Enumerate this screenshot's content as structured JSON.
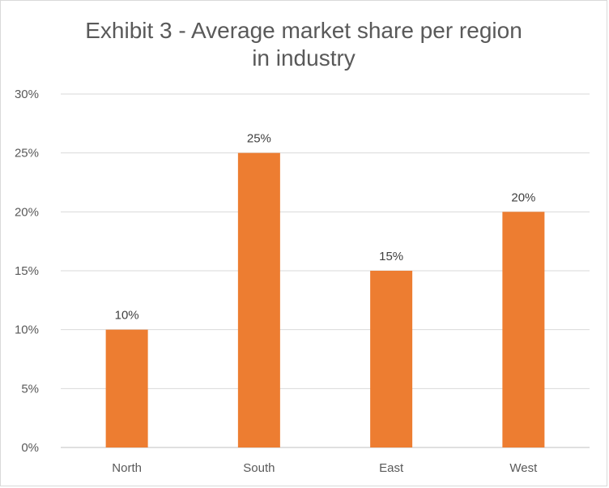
{
  "chart_data": {
    "type": "bar",
    "title": "Exhibit 3 - Average market share per region\nin industry",
    "categories": [
      "North",
      "South",
      "East",
      "West"
    ],
    "values": [
      10,
      25,
      15,
      20
    ],
    "value_format": "percent",
    "data_labels": [
      "10%",
      "25%",
      "15%",
      "20%"
    ],
    "ylim": [
      0,
      30
    ],
    "y_ticks": [
      0,
      5,
      10,
      15,
      20,
      25,
      30
    ],
    "y_tick_labels": [
      "0%",
      "5%",
      "10%",
      "15%",
      "20%",
      "25%",
      "30%"
    ],
    "xlabel": "",
    "ylabel": "",
    "grid": true,
    "legend": "none",
    "bar_color": "#ED7D31"
  }
}
